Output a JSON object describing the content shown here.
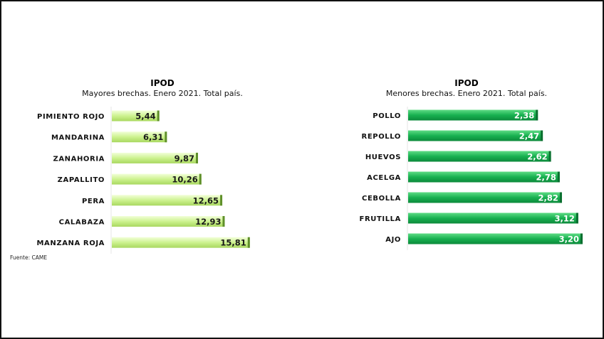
{
  "source": "Fuente: CAME",
  "chart_data": [
    {
      "type": "bar",
      "orientation": "horizontal",
      "title": "IPOD",
      "subtitle": "Mayores brechas. Enero 2021. Total país.",
      "categories": [
        "PIMIENTO ROJO",
        "MANDARINA",
        "ZANAHORIA",
        "ZAPALLITO",
        "PERA",
        "CALABAZA",
        "MANZANA ROJA"
      ],
      "values": [
        5.44,
        6.31,
        9.87,
        10.26,
        12.65,
        12.93,
        15.81
      ],
      "labels": [
        "5,44",
        "6,31",
        "9,87",
        "10,26",
        "12,65",
        "12,93",
        "15,81"
      ],
      "xlim": [
        0,
        16
      ],
      "grid": false,
      "bar_color": "#c8f08a"
    },
    {
      "type": "bar",
      "orientation": "horizontal",
      "title": "IPOD",
      "subtitle": "Menores brechas. Enero 2021. Total país.",
      "categories": [
        "POLLO",
        "REPOLLO",
        "HUEVOS",
        "ACELGA",
        "CEBOLLA",
        "FRUTILLA",
        "AJO"
      ],
      "values": [
        2.38,
        2.47,
        2.62,
        2.78,
        2.82,
        3.12,
        3.2
      ],
      "labels": [
        "2,38",
        "2,47",
        "2,62",
        "2,78",
        "2,82",
        "3,12",
        "3,20"
      ],
      "xlim": [
        0,
        3.25
      ],
      "grid": false,
      "bar_color": "#1fb456"
    }
  ]
}
